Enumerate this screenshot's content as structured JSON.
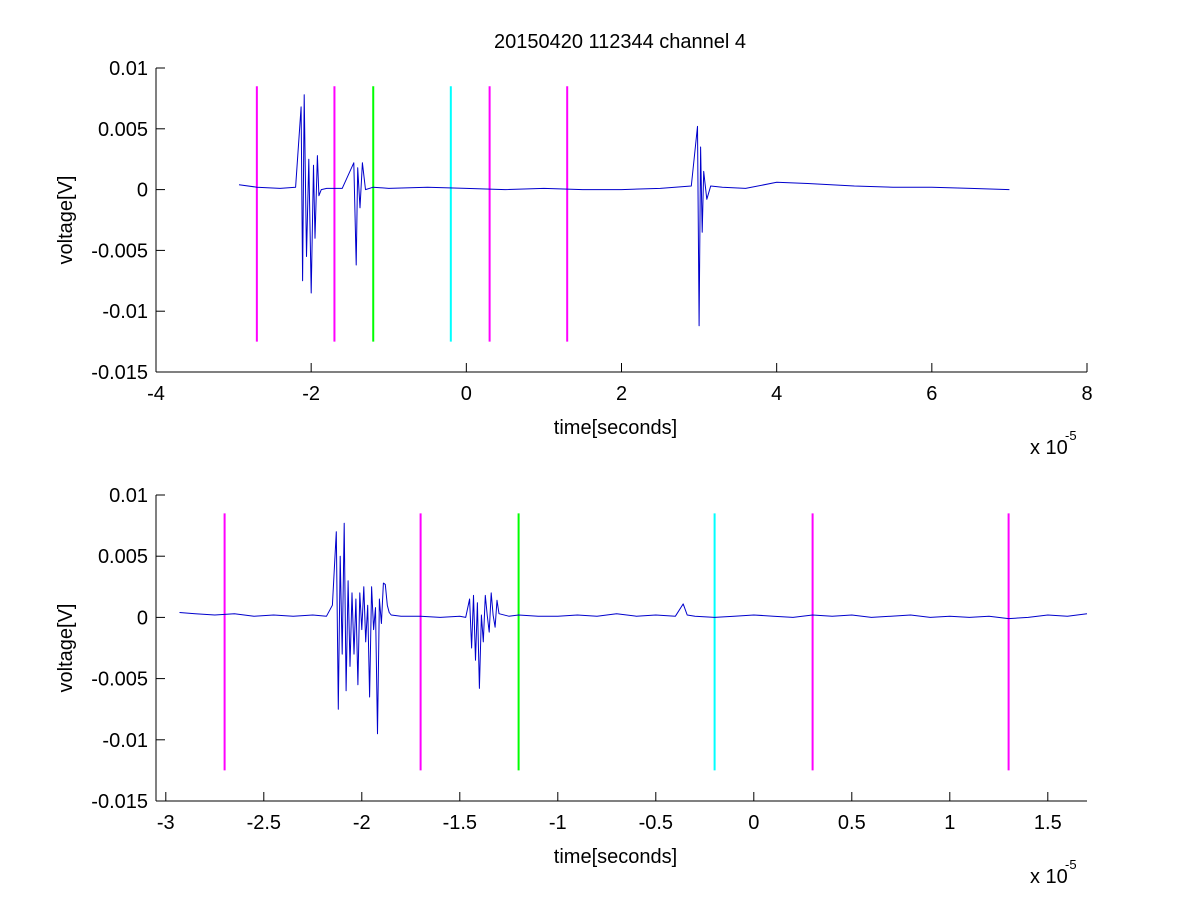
{
  "figure": {
    "title": "20150420 112344 channel 4"
  },
  "chart_data": [
    {
      "type": "line",
      "title": "20150420 112344 channel 4",
      "xlabel": "time[seconds]",
      "ylabel": "voltage[V]",
      "x_exponent_label": "x 10",
      "x_exponent": "-5",
      "xlim": [
        -4,
        8
      ],
      "ylim": [
        -0.015,
        0.01
      ],
      "xticks": [
        -4,
        -2,
        0,
        2,
        4,
        6,
        8
      ],
      "xtick_labels": [
        "-4",
        "-2",
        "0",
        "2",
        "4",
        "6",
        "8"
      ],
      "yticks": [
        0.01,
        0.005,
        0,
        -0.005,
        -0.01,
        -0.015
      ],
      "ytick_labels": [
        "0.01",
        "0.005",
        "0",
        "-0.005",
        "-0.01",
        "-0.015"
      ],
      "grid": false,
      "series_color": "#0000cc",
      "series": [
        {
          "x": [
            -2.93,
            -2.7,
            -2.4,
            -2.2,
            -2.13,
            -2.11,
            -2.09,
            -2.06,
            -2.03,
            -2.0,
            -1.97,
            -1.95,
            -1.92,
            -1.9,
            -1.87,
            -1.8,
            -1.6,
            -1.45,
            -1.42,
            -1.4,
            -1.37,
            -1.34,
            -1.3,
            -1.2,
            -1.0,
            -0.5,
            0,
            0.5,
            1.0,
            1.5,
            2.0,
            2.5,
            2.9,
            2.98,
            3.0,
            3.02,
            3.04,
            3.06,
            3.1,
            3.15,
            3.3,
            3.6,
            4.0,
            4.4,
            5.0,
            5.5,
            6.0,
            6.5,
            7.0
          ],
          "y": [
            0.0004,
            0.0002,
            0.0001,
            0.0002,
            0.0068,
            -0.0075,
            0.0078,
            -0.0055,
            0.0025,
            -0.0085,
            0.002,
            -0.004,
            0.0028,
            -0.0005,
            0.0,
            0.0001,
            0.0001,
            0.0022,
            -0.0062,
            0.0018,
            -0.0015,
            0.0022,
            0.0,
            0.0002,
            0.0001,
            0.0002,
            0.0001,
            0.0,
            0.0001,
            0.0,
            0.0,
            0.0001,
            0.0003,
            0.0052,
            -0.0112,
            0.0035,
            -0.0035,
            0.0015,
            -0.0008,
            0.0003,
            0.0002,
            0.0001,
            0.0006,
            0.0005,
            0.0003,
            0.0002,
            0.0002,
            0.0001,
            0.0
          ]
        }
      ],
      "markers": [
        {
          "x": -2.7,
          "color": "#ff00ff"
        },
        {
          "x": -1.7,
          "color": "#ff00ff"
        },
        {
          "x": -1.2,
          "color": "#00ff00"
        },
        {
          "x": -0.2,
          "color": "#00ffff"
        },
        {
          "x": 0.3,
          "color": "#ff00ff"
        },
        {
          "x": 1.3,
          "color": "#ff00ff"
        }
      ],
      "marker_range": [
        -0.0125,
        0.0085
      ]
    },
    {
      "type": "line",
      "xlabel": "time[seconds]",
      "ylabel": "voltage[V]",
      "x_exponent_label": "x 10",
      "x_exponent": "-5",
      "xlim": [
        -3.05,
        1.7
      ],
      "ylim": [
        -0.015,
        0.01
      ],
      "xticks": [
        -3,
        -2.5,
        -2,
        -1.5,
        -1,
        -0.5,
        0,
        0.5,
        1,
        1.5
      ],
      "xtick_labels": [
        "-3",
        "-2.5",
        "-2",
        "-1.5",
        "-1",
        "-0.5",
        "0",
        "0.5",
        "1",
        "1.5"
      ],
      "yticks": [
        0.01,
        0.005,
        0,
        -0.005,
        -0.01,
        -0.015
      ],
      "ytick_labels": [
        "0.01",
        "0.005",
        "0",
        "-0.005",
        "-0.01",
        "-0.015"
      ],
      "grid": false,
      "series_color": "#0000cc",
      "series": [
        {
          "x": [
            -2.93,
            -2.85,
            -2.75,
            -2.65,
            -2.55,
            -2.45,
            -2.35,
            -2.25,
            -2.18,
            -2.15,
            -2.13,
            -2.12,
            -2.11,
            -2.1,
            -2.09,
            -2.08,
            -2.07,
            -2.06,
            -2.05,
            -2.04,
            -2.03,
            -2.02,
            -2.01,
            -2.0,
            -1.99,
            -1.98,
            -1.97,
            -1.96,
            -1.95,
            -1.94,
            -1.93,
            -1.92,
            -1.91,
            -1.9,
            -1.89,
            -1.88,
            -1.87,
            -1.86,
            -1.85,
            -1.8,
            -1.7,
            -1.6,
            -1.5,
            -1.47,
            -1.45,
            -1.44,
            -1.43,
            -1.42,
            -1.41,
            -1.4,
            -1.39,
            -1.38,
            -1.37,
            -1.36,
            -1.35,
            -1.34,
            -1.33,
            -1.32,
            -1.31,
            -1.3,
            -1.25,
            -1.2,
            -1.1,
            -1.0,
            -0.9,
            -0.8,
            -0.7,
            -0.6,
            -0.5,
            -0.4,
            -0.36,
            -0.34,
            -0.3,
            -0.2,
            -0.1,
            0,
            0.1,
            0.2,
            0.3,
            0.4,
            0.5,
            0.6,
            0.7,
            0.8,
            0.9,
            1.0,
            1.1,
            1.2,
            1.3,
            1.4,
            1.5,
            1.6,
            1.7
          ],
          "y": [
            0.0004,
            0.0003,
            0.0002,
            0.0003,
            0.0001,
            0.0002,
            0.0001,
            0.0002,
            0.0001,
            0.001,
            0.007,
            -0.0075,
            0.005,
            -0.003,
            0.0077,
            -0.006,
            0.003,
            -0.004,
            0.002,
            -0.003,
            0.0015,
            -0.0055,
            0.002,
            -0.001,
            0.0025,
            -0.002,
            0.001,
            -0.0065,
            0.0025,
            -0.001,
            0.0008,
            -0.0095,
            0.0015,
            -0.0005,
            0.0028,
            0.0027,
            0.001,
            0.0004,
            0.0002,
            0.0001,
            0.0001,
            0.0,
            0.0001,
            0.0,
            0.0015,
            -0.0025,
            0.0018,
            -0.0035,
            0.0012,
            -0.0058,
            0.0002,
            -0.002,
            0.0018,
            0.0002,
            -0.0012,
            0.002,
            0.0002,
            -0.0008,
            0.0014,
            0.0003,
            0.0001,
            0.0002,
            0.0001,
            0.0001,
            0.0002,
            0.0001,
            0.0003,
            0.0001,
            0.0002,
            0.0001,
            0.0011,
            0.0002,
            0.0001,
            0.0,
            0.0001,
            0.0002,
            0.0001,
            0.0,
            0.0002,
            0.0001,
            0.0002,
            0.0,
            0.0001,
            0.0002,
            0.0,
            0.0001,
            0.0,
            0.0001,
            -0.0001,
            0.0,
            0.0002,
            0.0001,
            0.0003
          ]
        }
      ],
      "markers": [
        {
          "x": -2.7,
          "color": "#ff00ff"
        },
        {
          "x": -1.7,
          "color": "#ff00ff"
        },
        {
          "x": -1.2,
          "color": "#00ff00"
        },
        {
          "x": -0.2,
          "color": "#00ffff"
        },
        {
          "x": 0.3,
          "color": "#ff00ff"
        },
        {
          "x": 1.3,
          "color": "#ff00ff"
        }
      ],
      "marker_range": [
        -0.0125,
        0.0085
      ]
    }
  ]
}
